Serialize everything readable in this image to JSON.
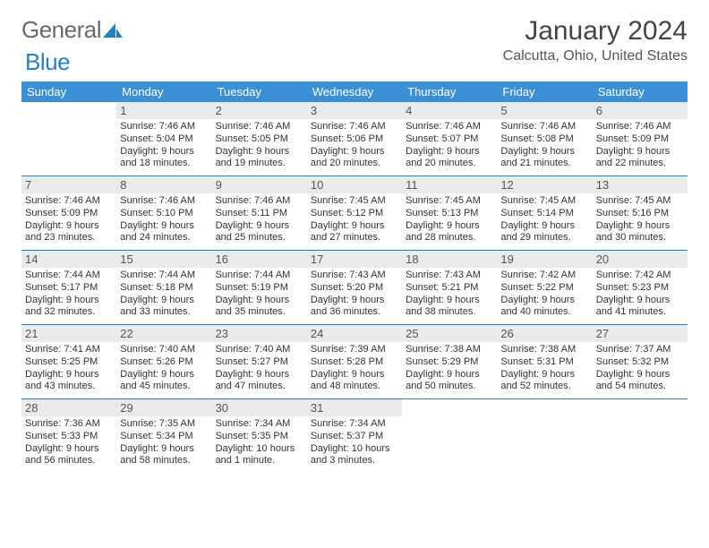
{
  "logo": {
    "text1": "General",
    "text2": "Blue"
  },
  "title": "January 2024",
  "location": "Calcutta, Ohio, United States",
  "colors": {
    "header_bg": "#3b8fd4",
    "header_fg": "#ffffff",
    "daynum_bg": "#e9eaeb",
    "rule": "#2a7fbf",
    "logo_blue": "#2a7fbf"
  },
  "dow": [
    "Sunday",
    "Monday",
    "Tuesday",
    "Wednesday",
    "Thursday",
    "Friday",
    "Saturday"
  ],
  "weeks": [
    [
      null,
      {
        "n": "1",
        "r": "7:46 AM",
        "s": "5:04 PM",
        "d": "9 hours and 18 minutes."
      },
      {
        "n": "2",
        "r": "7:46 AM",
        "s": "5:05 PM",
        "d": "9 hours and 19 minutes."
      },
      {
        "n": "3",
        "r": "7:46 AM",
        "s": "5:06 PM",
        "d": "9 hours and 20 minutes."
      },
      {
        "n": "4",
        "r": "7:46 AM",
        "s": "5:07 PM",
        "d": "9 hours and 20 minutes."
      },
      {
        "n": "5",
        "r": "7:46 AM",
        "s": "5:08 PM",
        "d": "9 hours and 21 minutes."
      },
      {
        "n": "6",
        "r": "7:46 AM",
        "s": "5:09 PM",
        "d": "9 hours and 22 minutes."
      }
    ],
    [
      {
        "n": "7",
        "r": "7:46 AM",
        "s": "5:09 PM",
        "d": "9 hours and 23 minutes."
      },
      {
        "n": "8",
        "r": "7:46 AM",
        "s": "5:10 PM",
        "d": "9 hours and 24 minutes."
      },
      {
        "n": "9",
        "r": "7:46 AM",
        "s": "5:11 PM",
        "d": "9 hours and 25 minutes."
      },
      {
        "n": "10",
        "r": "7:45 AM",
        "s": "5:12 PM",
        "d": "9 hours and 27 minutes."
      },
      {
        "n": "11",
        "r": "7:45 AM",
        "s": "5:13 PM",
        "d": "9 hours and 28 minutes."
      },
      {
        "n": "12",
        "r": "7:45 AM",
        "s": "5:14 PM",
        "d": "9 hours and 29 minutes."
      },
      {
        "n": "13",
        "r": "7:45 AM",
        "s": "5:16 PM",
        "d": "9 hours and 30 minutes."
      }
    ],
    [
      {
        "n": "14",
        "r": "7:44 AM",
        "s": "5:17 PM",
        "d": "9 hours and 32 minutes."
      },
      {
        "n": "15",
        "r": "7:44 AM",
        "s": "5:18 PM",
        "d": "9 hours and 33 minutes."
      },
      {
        "n": "16",
        "r": "7:44 AM",
        "s": "5:19 PM",
        "d": "9 hours and 35 minutes."
      },
      {
        "n": "17",
        "r": "7:43 AM",
        "s": "5:20 PM",
        "d": "9 hours and 36 minutes."
      },
      {
        "n": "18",
        "r": "7:43 AM",
        "s": "5:21 PM",
        "d": "9 hours and 38 minutes."
      },
      {
        "n": "19",
        "r": "7:42 AM",
        "s": "5:22 PM",
        "d": "9 hours and 40 minutes."
      },
      {
        "n": "20",
        "r": "7:42 AM",
        "s": "5:23 PM",
        "d": "9 hours and 41 minutes."
      }
    ],
    [
      {
        "n": "21",
        "r": "7:41 AM",
        "s": "5:25 PM",
        "d": "9 hours and 43 minutes."
      },
      {
        "n": "22",
        "r": "7:40 AM",
        "s": "5:26 PM",
        "d": "9 hours and 45 minutes."
      },
      {
        "n": "23",
        "r": "7:40 AM",
        "s": "5:27 PM",
        "d": "9 hours and 47 minutes."
      },
      {
        "n": "24",
        "r": "7:39 AM",
        "s": "5:28 PM",
        "d": "9 hours and 48 minutes."
      },
      {
        "n": "25",
        "r": "7:38 AM",
        "s": "5:29 PM",
        "d": "9 hours and 50 minutes."
      },
      {
        "n": "26",
        "r": "7:38 AM",
        "s": "5:31 PM",
        "d": "9 hours and 52 minutes."
      },
      {
        "n": "27",
        "r": "7:37 AM",
        "s": "5:32 PM",
        "d": "9 hours and 54 minutes."
      }
    ],
    [
      {
        "n": "28",
        "r": "7:36 AM",
        "s": "5:33 PM",
        "d": "9 hours and 56 minutes."
      },
      {
        "n": "29",
        "r": "7:35 AM",
        "s": "5:34 PM",
        "d": "9 hours and 58 minutes."
      },
      {
        "n": "30",
        "r": "7:34 AM",
        "s": "5:35 PM",
        "d": "10 hours and 1 minute."
      },
      {
        "n": "31",
        "r": "7:34 AM",
        "s": "5:37 PM",
        "d": "10 hours and 3 minutes."
      },
      null,
      null,
      null
    ]
  ],
  "labels": {
    "sunrise": "Sunrise:",
    "sunset": "Sunset:",
    "daylight": "Daylight:"
  }
}
